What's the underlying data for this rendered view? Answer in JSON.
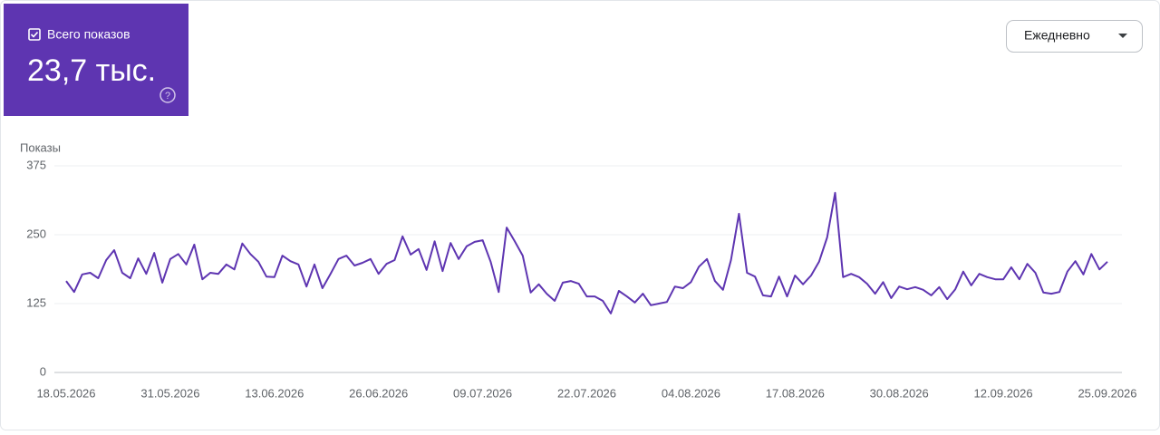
{
  "chart_data": {
    "type": "line",
    "total": "23,7 тыс.",
    "period": "Ежедневно",
    "ylabel": "Показы",
    "categories": [
      "18.05.2026",
      null,
      null,
      null,
      null,
      null,
      null,
      null,
      null,
      null,
      null,
      null,
      null,
      "31.05.2026",
      null,
      null,
      null,
      null,
      null,
      null,
      null,
      null,
      null,
      null,
      null,
      null,
      "13.06.2026",
      null,
      null,
      null,
      null,
      null,
      null,
      null,
      null,
      null,
      null,
      null,
      null,
      "26.06.2026",
      null,
      null,
      null,
      null,
      null,
      null,
      null,
      null,
      null,
      null,
      null,
      null,
      "09.07.2026",
      null,
      null,
      null,
      null,
      null,
      null,
      null,
      null,
      null,
      null,
      null,
      null,
      "22.07.2026",
      null,
      null,
      null,
      null,
      null,
      null,
      null,
      null,
      null,
      null,
      null,
      null,
      "04.08.2026",
      null,
      null,
      null,
      null,
      null,
      null,
      null,
      null,
      null,
      null,
      null,
      null,
      "17.08.2026",
      null,
      null,
      null,
      null,
      null,
      null,
      null,
      null,
      null,
      null,
      null,
      null,
      "30.08.2026",
      null,
      null,
      null,
      null,
      null,
      null,
      null,
      null,
      null,
      null,
      null,
      null,
      "12.09.2026",
      null,
      null,
      null,
      null,
      null,
      null,
      null,
      null,
      null,
      null,
      null,
      null,
      "25.09.2026"
    ],
    "series": [
      {
        "name": "Всего показов",
        "color": "#5e35b1",
        "values": [
          166,
          146,
          178,
          181,
          171,
          204,
          222,
          181,
          171,
          207,
          179,
          217,
          163,
          206,
          215,
          196,
          232,
          169,
          181,
          179,
          196,
          187,
          234,
          215,
          201,
          174,
          173,
          212,
          202,
          196,
          156,
          196,
          153,
          179,
          206,
          212,
          194,
          199,
          206,
          179,
          197,
          204,
          247,
          214,
          224,
          186,
          238,
          184,
          235,
          206,
          229,
          237,
          240,
          201,
          146,
          263,
          238,
          212,
          145,
          160,
          143,
          130,
          163,
          166,
          161,
          138,
          138,
          130,
          107,
          148,
          138,
          127,
          143,
          122,
          125,
          128,
          156,
          153,
          164,
          192,
          206,
          166,
          150,
          204,
          288,
          181,
          174,
          140,
          138,
          174,
          138,
          176,
          160,
          176,
          201,
          245,
          326,
          173,
          179,
          173,
          161,
          143,
          164,
          135,
          156,
          151,
          155,
          150,
          140,
          155,
          133,
          151,
          183,
          158,
          179,
          173,
          169,
          169,
          191,
          169,
          197,
          181,
          145,
          143,
          146,
          183,
          202,
          178,
          215,
          187,
          201
        ]
      }
    ],
    "ylim": [
      0,
      375
    ],
    "yticks": [
      0,
      125,
      250,
      375
    ],
    "grid": true
  }
}
